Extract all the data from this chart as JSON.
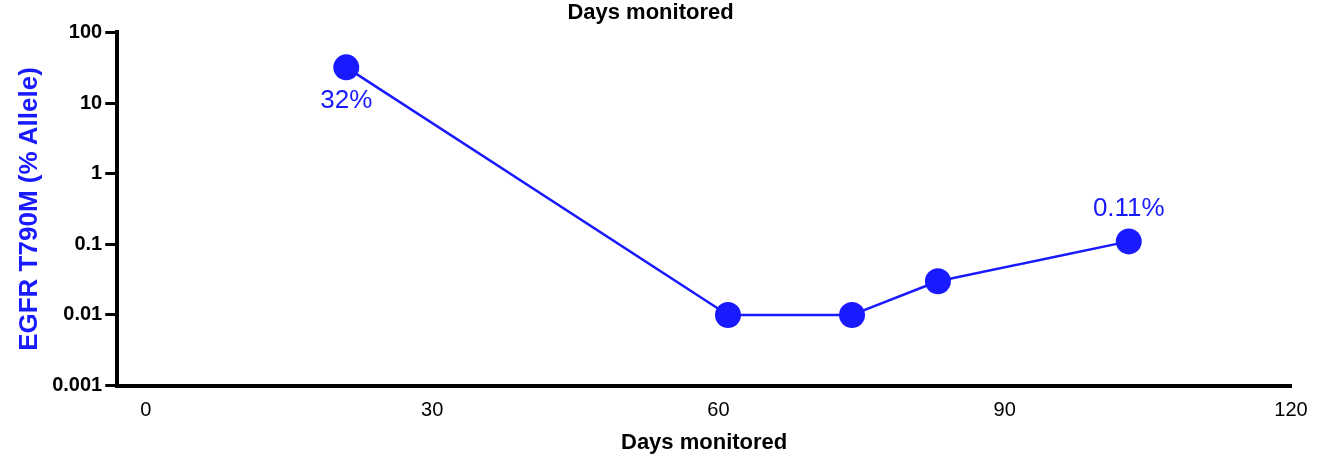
{
  "chart_data": {
    "type": "line",
    "title": "Days monitored",
    "xlabel": "Days monitored",
    "ylabel": "EGFR T790M (% Allele)",
    "x": [
      21,
      61,
      74,
      83,
      103
    ],
    "series": [
      {
        "color": "#1a1aff",
        "values": [
          32,
          0.01,
          0.01,
          0.03,
          0.11
        ],
        "value_labels": [
          "32%",
          null,
          null,
          null,
          "0.11%"
        ]
      }
    ],
    "xlim": [
      -3,
      120
    ],
    "xticks": [
      0,
      30,
      60,
      90,
      120
    ],
    "ylim": [
      0.001,
      100
    ],
    "yticks": [
      0.001,
      0.01,
      0.1,
      1,
      10,
      100
    ],
    "log": "y",
    "grid": false,
    "legend": false,
    "marker": "circle",
    "line_style": "solid"
  }
}
